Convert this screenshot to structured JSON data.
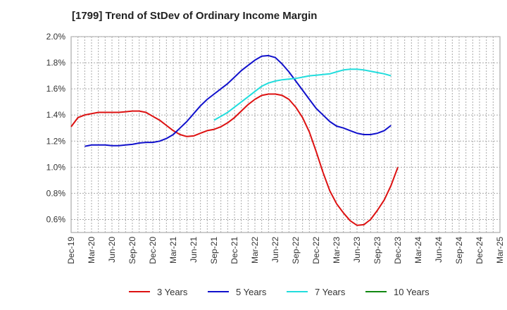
{
  "chart_data": {
    "type": "line",
    "title": "[1799]  Trend of StDev of Ordinary Income Margin",
    "xlabel": "",
    "ylabel": "",
    "x_ticks": [
      "Dec-19",
      "Mar-20",
      "Jun-20",
      "Sep-20",
      "Dec-20",
      "Mar-21",
      "Jun-21",
      "Sep-21",
      "Dec-21",
      "Mar-22",
      "Jun-22",
      "Sep-22",
      "Dec-22",
      "Mar-23",
      "Jun-23",
      "Sep-23",
      "Dec-23",
      "Mar-24",
      "Jun-24",
      "Sep-24",
      "Dec-24",
      "Mar-25"
    ],
    "y_ticks": [
      "0.6%",
      "0.8%",
      "1.0%",
      "1.2%",
      "1.4%",
      "1.6%",
      "1.8%",
      "2.0%"
    ],
    "ylim": [
      0.5,
      2.0
    ],
    "grid": true,
    "legend_position": "bottom",
    "series": [
      {
        "name": "3 Years",
        "color": "#dd1111",
        "values": [
          1.31,
          1.38,
          1.4,
          1.41,
          1.42,
          1.42,
          1.42,
          1.42,
          1.425,
          1.43,
          1.43,
          1.42,
          1.39,
          1.36,
          1.32,
          1.28,
          1.25,
          1.235,
          1.24,
          1.26,
          1.28,
          1.29,
          1.31,
          1.34,
          1.38,
          1.43,
          1.48,
          1.52,
          1.55,
          1.56,
          1.56,
          1.55,
          1.52,
          1.46,
          1.38,
          1.27,
          1.12,
          0.96,
          0.82,
          0.72,
          0.65,
          0.59,
          0.555,
          0.56,
          0.6,
          0.67,
          0.75,
          0.86,
          1.0
        ]
      },
      {
        "name": "5 Years",
        "color": "#1111cc",
        "values": [
          null,
          null,
          1.16,
          1.17,
          1.17,
          1.17,
          1.165,
          1.165,
          1.17,
          1.175,
          1.185,
          1.19,
          1.19,
          1.2,
          1.22,
          1.25,
          1.3,
          1.35,
          1.41,
          1.47,
          1.52,
          1.56,
          1.6,
          1.64,
          1.69,
          1.74,
          1.78,
          1.82,
          1.85,
          1.855,
          1.84,
          1.79,
          1.73,
          1.66,
          1.59,
          1.52,
          1.45,
          1.4,
          1.35,
          1.315,
          1.3,
          1.28,
          1.26,
          1.25,
          1.25,
          1.26,
          1.28,
          1.32,
          null
        ]
      },
      {
        "name": "7 Years",
        "color": "#22dddd",
        "values": [
          null,
          null,
          null,
          null,
          null,
          null,
          null,
          null,
          null,
          null,
          null,
          null,
          null,
          null,
          null,
          null,
          null,
          null,
          null,
          null,
          null,
          1.36,
          1.39,
          1.42,
          1.46,
          1.5,
          1.54,
          1.58,
          1.62,
          1.645,
          1.66,
          1.67,
          1.675,
          1.68,
          1.69,
          1.7,
          1.705,
          1.71,
          1.715,
          1.73,
          1.745,
          1.75,
          1.75,
          1.745,
          1.735,
          1.725,
          1.715,
          1.7,
          null
        ]
      },
      {
        "name": "10 Years",
        "color": "#118811",
        "values": []
      }
    ]
  }
}
